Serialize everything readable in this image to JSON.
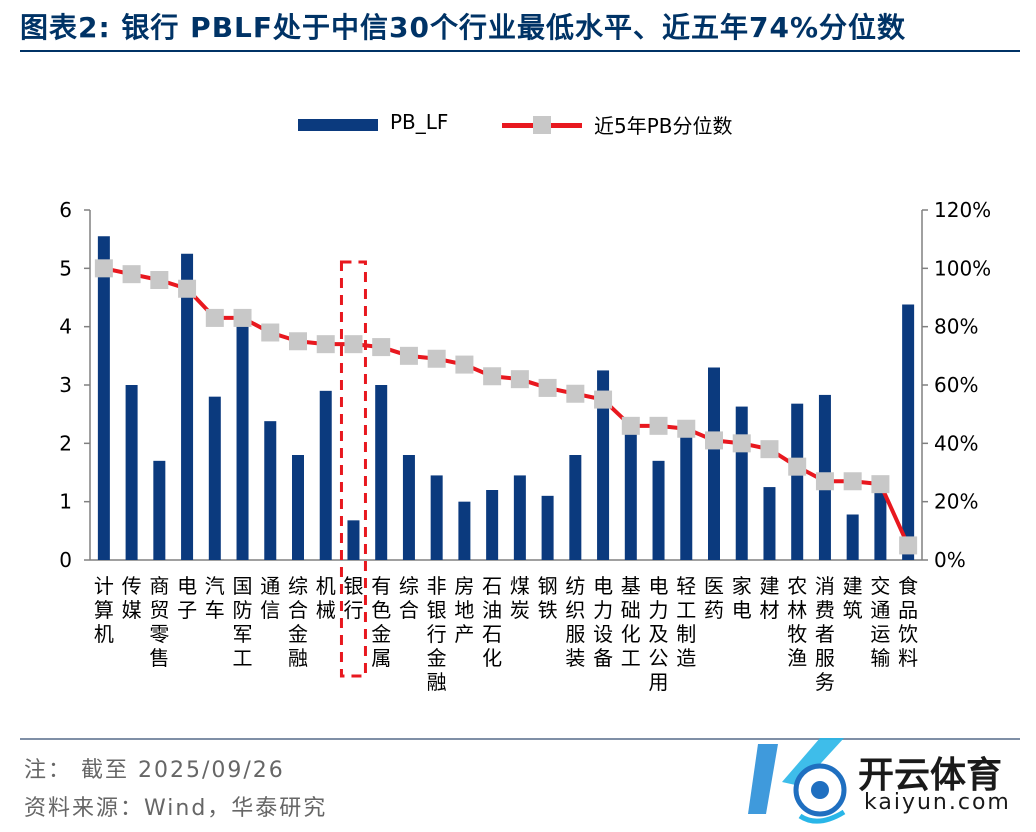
{
  "title": "图表2:  银行 PBLF处于中信30个行业最低水平、近五年74%分位数",
  "legend": {
    "bar_label": "PB_LF",
    "line_label": "近5年PB分位数"
  },
  "colors": {
    "bar": "#0b3a7e",
    "line": "#e8181f",
    "marker": "#c8c8c8",
    "highlight": "#e8181f"
  },
  "chart_data": {
    "type": "bar+line",
    "title": "银行 PBLF处于中信30个行业最低水平、近五年74%分位数",
    "categories": [
      "计算机",
      "传媒",
      "商贸零售",
      "电子",
      "汽车",
      "国防军工",
      "通信",
      "综合金融",
      "机械",
      "银行",
      "有色金属",
      "综合",
      "非银行金融",
      "房地产",
      "石油石化",
      "煤炭",
      "钢铁",
      "纺织服装",
      "电力设备",
      "基础化工",
      "电力及公用",
      "轻工制造",
      "医药",
      "家电",
      "建材",
      "农林牧渔",
      "消费者服务",
      "建筑",
      "交通运输",
      "食品饮料"
    ],
    "series": [
      {
        "name": "PB_LF",
        "axis": "left",
        "type": "bar",
        "values": [
          5.55,
          3.0,
          1.7,
          5.25,
          2.8,
          4.05,
          2.38,
          1.8,
          2.9,
          0.68,
          3.0,
          1.8,
          1.45,
          1.0,
          1.2,
          1.45,
          1.1,
          1.8,
          3.25,
          2.3,
          1.7,
          2.2,
          3.3,
          2.63,
          1.25,
          2.68,
          2.83,
          0.78,
          1.25,
          4.38
        ]
      },
      {
        "name": "近5年PB分位数",
        "axis": "right",
        "type": "line",
        "values": [
          100,
          98,
          96,
          93,
          83,
          83,
          78,
          75,
          74,
          74,
          73,
          70,
          69,
          67,
          63,
          62,
          59,
          57,
          55,
          46,
          46,
          45,
          41,
          40,
          38,
          32,
          27,
          27,
          26,
          5
        ]
      }
    ],
    "left_axis": {
      "min": 0,
      "max": 6,
      "ticks": [
        0,
        1,
        2,
        3,
        4,
        5,
        6
      ]
    },
    "right_axis": {
      "min": 0,
      "max": 120,
      "ticks": [
        0,
        20,
        40,
        60,
        80,
        100,
        120
      ],
      "tick_labels": [
        "0%",
        "20%",
        "40%",
        "60%",
        "80%",
        "100%",
        "120%"
      ]
    },
    "highlight_category": "银行"
  },
  "notes": {
    "line1": "注： 截至 2025/09/26",
    "line2": "资料来源：Wind，华泰研究"
  },
  "watermark": {
    "text": "开云体育",
    "sub": "kaiyun.com"
  }
}
